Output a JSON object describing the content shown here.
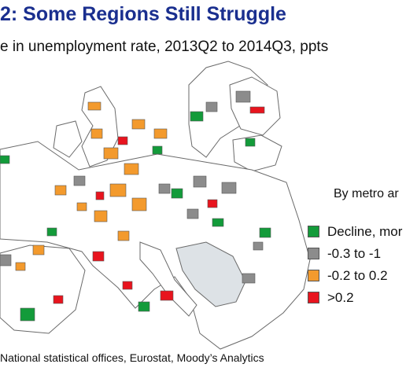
{
  "title": "2: Some Regions Still Struggle",
  "subtitle": "e in unemployment rate, 2013Q2 to 2014Q3, ppts",
  "legend": {
    "title": "By metro ar",
    "items": [
      {
        "label": "Decline, mor",
        "color": "#139b3a"
      },
      {
        "label": "-0.3 to -1",
        "color": "#8c8c8c"
      },
      {
        "label": "-0.2 to 0.2",
        "color": "#f39a2d"
      },
      {
        "label": ">0.2",
        "color": "#e8141e"
      }
    ]
  },
  "map": {
    "land_color": "#ffffff",
    "border_color": "#6a6a6a",
    "no_data_color": "#dde2e6",
    "regions": [
      {
        "category": "Decline, mor"
      },
      {
        "category": "-0.3 to -1"
      },
      {
        "category": "-0.2 to 0.2"
      },
      {
        "category": ">0.2"
      }
    ]
  },
  "source": "National statistical offices, Eurostat, Moody’s Analytics"
}
